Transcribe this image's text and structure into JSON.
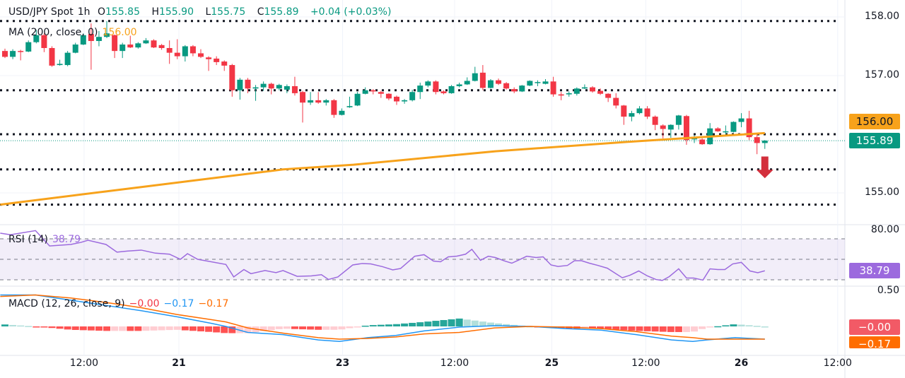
{
  "header": {
    "symbol": "USD/JPY Spot",
    "interval": "1h",
    "open_label": "O",
    "open": "155.85",
    "high_label": "H",
    "high": "155.90",
    "low_label": "L",
    "low": "155.75",
    "close_label": "C",
    "close": "155.89",
    "change": "+0.04 (+0.03%)"
  },
  "ma_legend": {
    "label": "MA (200, close, 0)",
    "value": "156.00"
  },
  "rsi_legend": {
    "label": "RSI (14)",
    "value": "38.79"
  },
  "macd_legend": {
    "label": "MACD (12, 26, close, 9)",
    "hist": "−0.00",
    "macd": "−0.17",
    "signal": "−0.17"
  },
  "price_axis": {
    "ticks": [
      "158.00",
      "157.00",
      "155.00"
    ],
    "ma_badge": "156.00",
    "last_badge": "155.89"
  },
  "rsi_axis": {
    "tick": "80.00",
    "badge": "38.79"
  },
  "macd_axis": {
    "tick": "0.50",
    "hist_badge": "−0.00",
    "signal_badge": "−0.17"
  },
  "time_axis": [
    {
      "label": "12:00",
      "bold": false
    },
    {
      "label": "21",
      "bold": true
    },
    {
      "label": "23",
      "bold": true
    },
    {
      "label": "12:00",
      "bold": false
    },
    {
      "label": "25",
      "bold": true
    },
    {
      "label": "12:00",
      "bold": false
    },
    {
      "label": "26",
      "bold": true
    },
    {
      "label": "12:00",
      "bold": false
    }
  ],
  "colors": {
    "up": "#089981",
    "down": "#f23645",
    "ma": "#f7a21b",
    "rsi": "#9c6ade",
    "macd": "#2196f3",
    "signal": "#ff6d00",
    "arrow": "#d32f3c"
  },
  "chart_data": {
    "type": "candlestick",
    "symbol": "USD/JPY Spot",
    "interval": "1h",
    "ylim": [
      154.65,
      158.1
    ],
    "time_tick_index": [
      10.1,
      22.2,
      43.1,
      57.4,
      69.8,
      81.8,
      94,
      106.3
    ],
    "ohlc": [
      [
        157.42,
        157.46,
        157.3,
        157.32
      ],
      [
        157.32,
        157.45,
        157.28,
        157.42
      ],
      [
        157.42,
        157.44,
        157.26,
        157.41
      ],
      [
        157.41,
        157.6,
        157.4,
        157.57
      ],
      [
        157.57,
        157.78,
        157.55,
        157.69
      ],
      [
        157.69,
        157.72,
        157.4,
        157.47
      ],
      [
        157.47,
        157.5,
        157.15,
        157.17
      ],
      [
        157.18,
        157.27,
        157.17,
        157.2
      ],
      [
        157.18,
        157.42,
        157.16,
        157.39
      ],
      [
        157.39,
        157.56,
        157.38,
        157.53
      ],
      [
        157.53,
        157.72,
        157.52,
        157.69
      ],
      [
        157.71,
        157.89,
        157.1,
        157.59
      ],
      [
        157.59,
        157.76,
        157.5,
        157.66
      ],
      [
        157.66,
        157.93,
        157.64,
        157.72
      ],
      [
        157.69,
        157.7,
        157.3,
        157.42
      ],
      [
        157.42,
        157.56,
        157.3,
        157.53
      ],
      [
        157.53,
        157.68,
        157.47,
        157.48
      ],
      [
        157.48,
        157.57,
        157.46,
        157.55
      ],
      [
        157.55,
        157.64,
        157.54,
        157.6
      ],
      [
        157.6,
        157.62,
        157.47,
        157.48
      ],
      [
        157.52,
        157.54,
        157.44,
        157.47
      ],
      [
        157.47,
        157.6,
        157.2,
        157.39
      ],
      [
        157.39,
        157.62,
        157.28,
        157.33
      ],
      [
        157.33,
        157.52,
        157.24,
        157.5
      ],
      [
        157.5,
        157.52,
        157.33,
        157.38
      ],
      [
        157.38,
        157.45,
        157.3,
        157.32
      ],
      [
        157.31,
        157.33,
        157.08,
        157.28
      ],
      [
        157.29,
        157.33,
        157.18,
        157.23
      ],
      [
        157.24,
        157.26,
        157.08,
        157.17
      ],
      [
        157.18,
        157.2,
        156.64,
        156.75
      ],
      [
        156.75,
        156.96,
        156.59,
        156.93
      ],
      [
        156.93,
        156.96,
        156.7,
        156.78
      ],
      [
        156.78,
        156.84,
        156.57,
        156.8
      ],
      [
        156.8,
        156.9,
        156.74,
        156.86
      ],
      [
        156.86,
        156.88,
        156.68,
        156.78
      ],
      [
        156.78,
        156.86,
        156.75,
        156.84
      ],
      [
        156.76,
        156.85,
        156.7,
        156.82
      ],
      [
        156.82,
        156.98,
        156.66,
        156.7
      ],
      [
        156.72,
        156.74,
        156.2,
        156.54
      ],
      [
        156.54,
        156.72,
        156.5,
        156.58
      ],
      [
        156.58,
        156.72,
        156.52,
        156.54
      ],
      [
        156.54,
        156.6,
        156.49,
        156.58
      ],
      [
        156.58,
        156.6,
        156.28,
        156.33
      ],
      [
        156.33,
        156.44,
        156.32,
        156.4
      ],
      [
        156.46,
        156.64,
        156.45,
        156.48
      ],
      [
        156.49,
        156.72,
        156.48,
        156.69
      ],
      [
        156.69,
        156.8,
        156.68,
        156.75
      ],
      [
        156.75,
        156.77,
        156.68,
        156.73
      ],
      [
        156.72,
        156.74,
        156.62,
        156.69
      ],
      [
        156.69,
        156.7,
        156.58,
        156.61
      ],
      [
        156.64,
        156.66,
        156.5,
        156.56
      ],
      [
        156.56,
        156.6,
        156.52,
        156.58
      ],
      [
        156.58,
        156.76,
        156.56,
        156.72
      ],
      [
        156.72,
        156.88,
        156.6,
        156.83
      ],
      [
        156.83,
        156.92,
        156.8,
        156.9
      ],
      [
        156.9,
        156.92,
        156.68,
        156.72
      ],
      [
        156.73,
        156.75,
        156.68,
        156.7
      ],
      [
        156.7,
        156.84,
        156.69,
        156.82
      ],
      [
        156.82,
        156.88,
        156.8,
        156.85
      ],
      [
        156.85,
        156.97,
        156.84,
        156.91
      ],
      [
        156.91,
        157.15,
        156.9,
        157.04
      ],
      [
        157.05,
        157.18,
        156.75,
        156.79
      ],
      [
        156.79,
        156.94,
        156.78,
        156.92
      ],
      [
        156.92,
        156.95,
        156.84,
        156.86
      ],
      [
        156.87,
        156.89,
        156.76,
        156.78
      ],
      [
        156.77,
        156.8,
        156.7,
        156.73
      ],
      [
        156.73,
        156.84,
        156.72,
        156.83
      ],
      [
        156.83,
        156.92,
        156.82,
        156.91
      ],
      [
        156.88,
        156.92,
        156.82,
        156.89
      ],
      [
        156.86,
        156.94,
        156.85,
        156.9
      ],
      [
        156.9,
        156.98,
        156.64,
        156.68
      ],
      [
        156.68,
        156.72,
        156.58,
        156.66
      ],
      [
        156.68,
        156.73,
        156.64,
        156.7
      ],
      [
        156.69,
        156.8,
        156.66,
        156.78
      ],
      [
        156.78,
        156.85,
        156.77,
        156.8
      ],
      [
        156.8,
        156.82,
        156.71,
        156.73
      ],
      [
        156.74,
        156.78,
        156.67,
        156.69
      ],
      [
        156.69,
        156.7,
        156.55,
        156.62
      ],
      [
        156.62,
        156.7,
        156.44,
        156.49
      ],
      [
        156.49,
        156.5,
        156.16,
        156.3
      ],
      [
        156.3,
        156.4,
        156.22,
        156.36
      ],
      [
        156.36,
        156.48,
        156.34,
        156.44
      ],
      [
        156.44,
        156.48,
        156.26,
        156.3
      ],
      [
        156.3,
        156.32,
        156.07,
        156.16
      ],
      [
        156.15,
        156.17,
        155.93,
        156.09
      ],
      [
        156.08,
        156.17,
        155.94,
        156.16
      ],
      [
        156.16,
        156.33,
        156.08,
        156.32
      ],
      [
        156.31,
        156.33,
        155.82,
        155.9
      ],
      [
        155.92,
        155.98,
        155.85,
        155.93
      ],
      [
        155.91,
        155.93,
        155.82,
        155.83
      ],
      [
        155.83,
        156.19,
        155.82,
        156.1
      ],
      [
        156.1,
        156.12,
        156.04,
        156.05
      ],
      [
        156.04,
        156.15,
        156.0,
        156.05
      ],
      [
        156.04,
        156.22,
        156.03,
        156.21
      ],
      [
        156.21,
        156.36,
        156.12,
        156.27
      ],
      [
        156.27,
        156.4,
        155.9,
        155.95
      ],
      [
        155.95,
        156.0,
        155.66,
        155.85
      ],
      [
        155.85,
        155.9,
        155.75,
        155.89
      ]
    ],
    "ma200": [
      [
        -0.6,
        154.8
      ],
      [
        17.4,
        155.1
      ],
      [
        35.5,
        155.4
      ],
      [
        44.5,
        155.48
      ],
      [
        62.6,
        155.71
      ],
      [
        80.6,
        155.88
      ],
      [
        97,
        156.02
      ]
    ],
    "levels": [
      157.93,
      156.75,
      156.0,
      155.4,
      154.8
    ],
    "last_price": 155.89,
    "arrow_annotation": {
      "direction": "down",
      "index": 97,
      "from": 155.62,
      "to": 155.25
    },
    "rsi": {
      "ylim_top": 80,
      "bands": [
        70,
        50,
        30
      ],
      "points": [
        [
          -0.6,
          75.5
        ],
        [
          0.7,
          74
        ],
        [
          3.9,
          78
        ],
        [
          5.7,
          63
        ],
        [
          8.4,
          64.5
        ],
        [
          9.7,
          66.5
        ],
        [
          10.6,
          68.6
        ],
        [
          12.9,
          64.5
        ],
        [
          14.3,
          57
        ],
        [
          15.6,
          58
        ],
        [
          17.4,
          59
        ],
        [
          19.2,
          56
        ],
        [
          21,
          55
        ],
        [
          22.4,
          50
        ],
        [
          23.3,
          55.5
        ],
        [
          24.6,
          50
        ],
        [
          28.2,
          45
        ],
        [
          29.2,
          32.8
        ],
        [
          30.5,
          40
        ],
        [
          31.4,
          36
        ],
        [
          33.2,
          39
        ],
        [
          34.6,
          37
        ],
        [
          35.5,
          39
        ],
        [
          37.3,
          33.4
        ],
        [
          39.1,
          33.8
        ],
        [
          40.4,
          35
        ],
        [
          41.3,
          30.3
        ],
        [
          42.5,
          32.8
        ],
        [
          44.4,
          44.5
        ],
        [
          45.6,
          45.9
        ],
        [
          46.7,
          45.5
        ],
        [
          48.2,
          42.8
        ],
        [
          49.5,
          39.7
        ],
        [
          50.5,
          41
        ],
        [
          52.3,
          53
        ],
        [
          53.5,
          54.5
        ],
        [
          54.7,
          48.3
        ],
        [
          55.6,
          47.6
        ],
        [
          56.6,
          52.4
        ],
        [
          57.7,
          53.1
        ],
        [
          58.8,
          55
        ],
        [
          59.6,
          59.7
        ],
        [
          60.7,
          49
        ],
        [
          61.7,
          53
        ],
        [
          62.6,
          51.7
        ],
        [
          63.8,
          48.3
        ],
        [
          64.7,
          46.2
        ],
        [
          65.7,
          49.7
        ],
        [
          66.6,
          53
        ],
        [
          67.8,
          51.7
        ],
        [
          68.7,
          52.4
        ],
        [
          69.7,
          44.5
        ],
        [
          70.6,
          43
        ],
        [
          71.8,
          44
        ],
        [
          72.7,
          48.6
        ],
        [
          73.6,
          48.6
        ],
        [
          74.6,
          46.2
        ],
        [
          75.7,
          44
        ],
        [
          76.9,
          41.3
        ],
        [
          77.8,
          36.9
        ],
        [
          78.8,
          32
        ],
        [
          79.8,
          34.5
        ],
        [
          80.9,
          38.6
        ],
        [
          82.0,
          33.8
        ],
        [
          83.1,
          30.3
        ],
        [
          83.9,
          29.3
        ],
        [
          84.8,
          33.1
        ],
        [
          86.0,
          40.7
        ],
        [
          87.0,
          31.7
        ],
        [
          87.9,
          31.7
        ],
        [
          89.1,
          29.7
        ],
        [
          90.0,
          40.7
        ],
        [
          91.0,
          40
        ],
        [
          91.9,
          40
        ],
        [
          92.9,
          45.5
        ],
        [
          94.0,
          47
        ],
        [
          95.1,
          38.6
        ],
        [
          96.1,
          36.9
        ],
        [
          97,
          38.79
        ]
      ]
    },
    "macd": {
      "tick": 0.5,
      "macd_line": [
        [
          -0.6,
          0.42
        ],
        [
          3.9,
          0.42
        ],
        [
          8.4,
          0.35
        ],
        [
          12.9,
          0.28
        ],
        [
          17.4,
          0.21
        ],
        [
          21.9,
          0.13
        ],
        [
          26.4,
          0.04
        ],
        [
          28.2,
          0
        ],
        [
          31,
          -0.08
        ],
        [
          35.5,
          -0.11
        ],
        [
          40,
          -0.18
        ],
        [
          42.7,
          -0.2
        ],
        [
          46.3,
          -0.15
        ],
        [
          49.9,
          -0.12
        ],
        [
          53.5,
          -0.06
        ],
        [
          58,
          -0.01
        ],
        [
          62.5,
          0.01
        ],
        [
          67.1,
          0
        ],
        [
          71.6,
          -0.03
        ],
        [
          76.1,
          -0.05
        ],
        [
          80.6,
          -0.11
        ],
        [
          85.1,
          -0.18
        ],
        [
          87.8,
          -0.2
        ],
        [
          89.6,
          -0.18
        ],
        [
          93.2,
          -0.15
        ],
        [
          97,
          -0.17
        ]
      ],
      "signal_line": [
        [
          -0.6,
          0.4
        ],
        [
          3.9,
          0.42
        ],
        [
          8.4,
          0.38
        ],
        [
          12.9,
          0.32
        ],
        [
          17.4,
          0.25
        ],
        [
          21.9,
          0.16
        ],
        [
          26.4,
          0.09
        ],
        [
          28.2,
          0.06
        ],
        [
          31,
          -0.02
        ],
        [
          35.5,
          -0.09
        ],
        [
          40,
          -0.15
        ],
        [
          42.7,
          -0.17
        ],
        [
          46.3,
          -0.16
        ],
        [
          49.9,
          -0.14
        ],
        [
          53.5,
          -0.1
        ],
        [
          58,
          -0.08
        ],
        [
          62.5,
          -0.02
        ],
        [
          67.1,
          0
        ],
        [
          71.6,
          -0.01
        ],
        [
          76.1,
          -0.03
        ],
        [
          80.6,
          -0.07
        ],
        [
          85.1,
          -0.13
        ],
        [
          87.8,
          -0.15
        ],
        [
          89.6,
          -0.17
        ],
        [
          93.2,
          -0.17
        ],
        [
          97,
          -0.17
        ]
      ]
    }
  }
}
